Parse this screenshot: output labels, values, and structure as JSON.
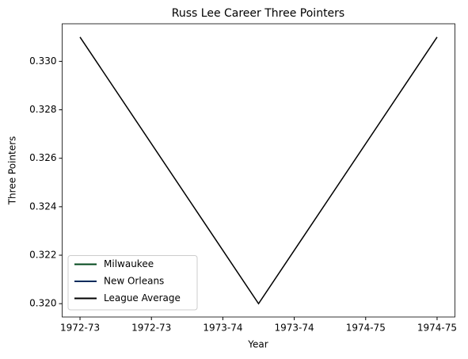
{
  "chart_data": {
    "type": "line",
    "title": "Russ Lee Career Three Pointers",
    "xlabel": "Year",
    "ylabel": "Three Pointers",
    "x": [
      0,
      1,
      2
    ],
    "series": [
      {
        "name": "Milwaukee",
        "color": "#00471b",
        "values": [
          null,
          null,
          null
        ]
      },
      {
        "name": "New Orleans",
        "color": "#002b5c",
        "values": [
          null,
          null,
          null
        ]
      },
      {
        "name": "League Average",
        "color": "#000000",
        "values": [
          0.331,
          0.32,
          0.331
        ]
      }
    ],
    "xlim": [
      -0.1,
      2.1
    ],
    "xticks": [
      {
        "value": 0,
        "label": "1972-73"
      },
      {
        "value": 0.4,
        "label": "1972-73"
      },
      {
        "value": 0.8,
        "label": "1973-74"
      },
      {
        "value": 1.2,
        "label": "1973-74"
      },
      {
        "value": 1.6,
        "label": "1974-75"
      },
      {
        "value": 2.0,
        "label": "1974-75"
      }
    ],
    "ylim": [
      0.31945,
      0.33155
    ],
    "yticks": [
      {
        "value": 0.32,
        "label": "0.320"
      },
      0.322,
      0.324,
      0.326,
      0.328,
      {
        "value": 0.33,
        "label": "0.330"
      }
    ],
    "grid": false,
    "legend": "lower left"
  }
}
